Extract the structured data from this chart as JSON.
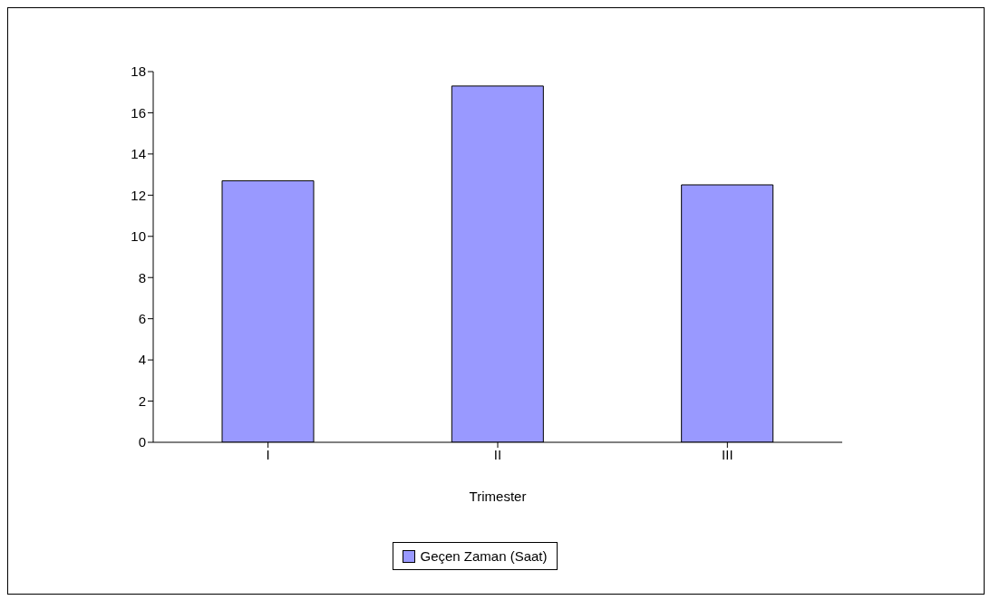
{
  "chart_data": {
    "type": "bar",
    "xlabel": "Trimester",
    "categories": [
      "I",
      "II",
      "III"
    ],
    "series": [
      {
        "name": "Geçen Zaman (Saat)",
        "color": "#9999ff",
        "values": [
          12.7,
          17.3,
          12.5
        ]
      }
    ],
    "ylim": [
      0,
      18
    ],
    "yticks": [
      0,
      2,
      4,
      6,
      8,
      10,
      12,
      14,
      16,
      18
    ],
    "grid": false,
    "legend": "bottom"
  }
}
